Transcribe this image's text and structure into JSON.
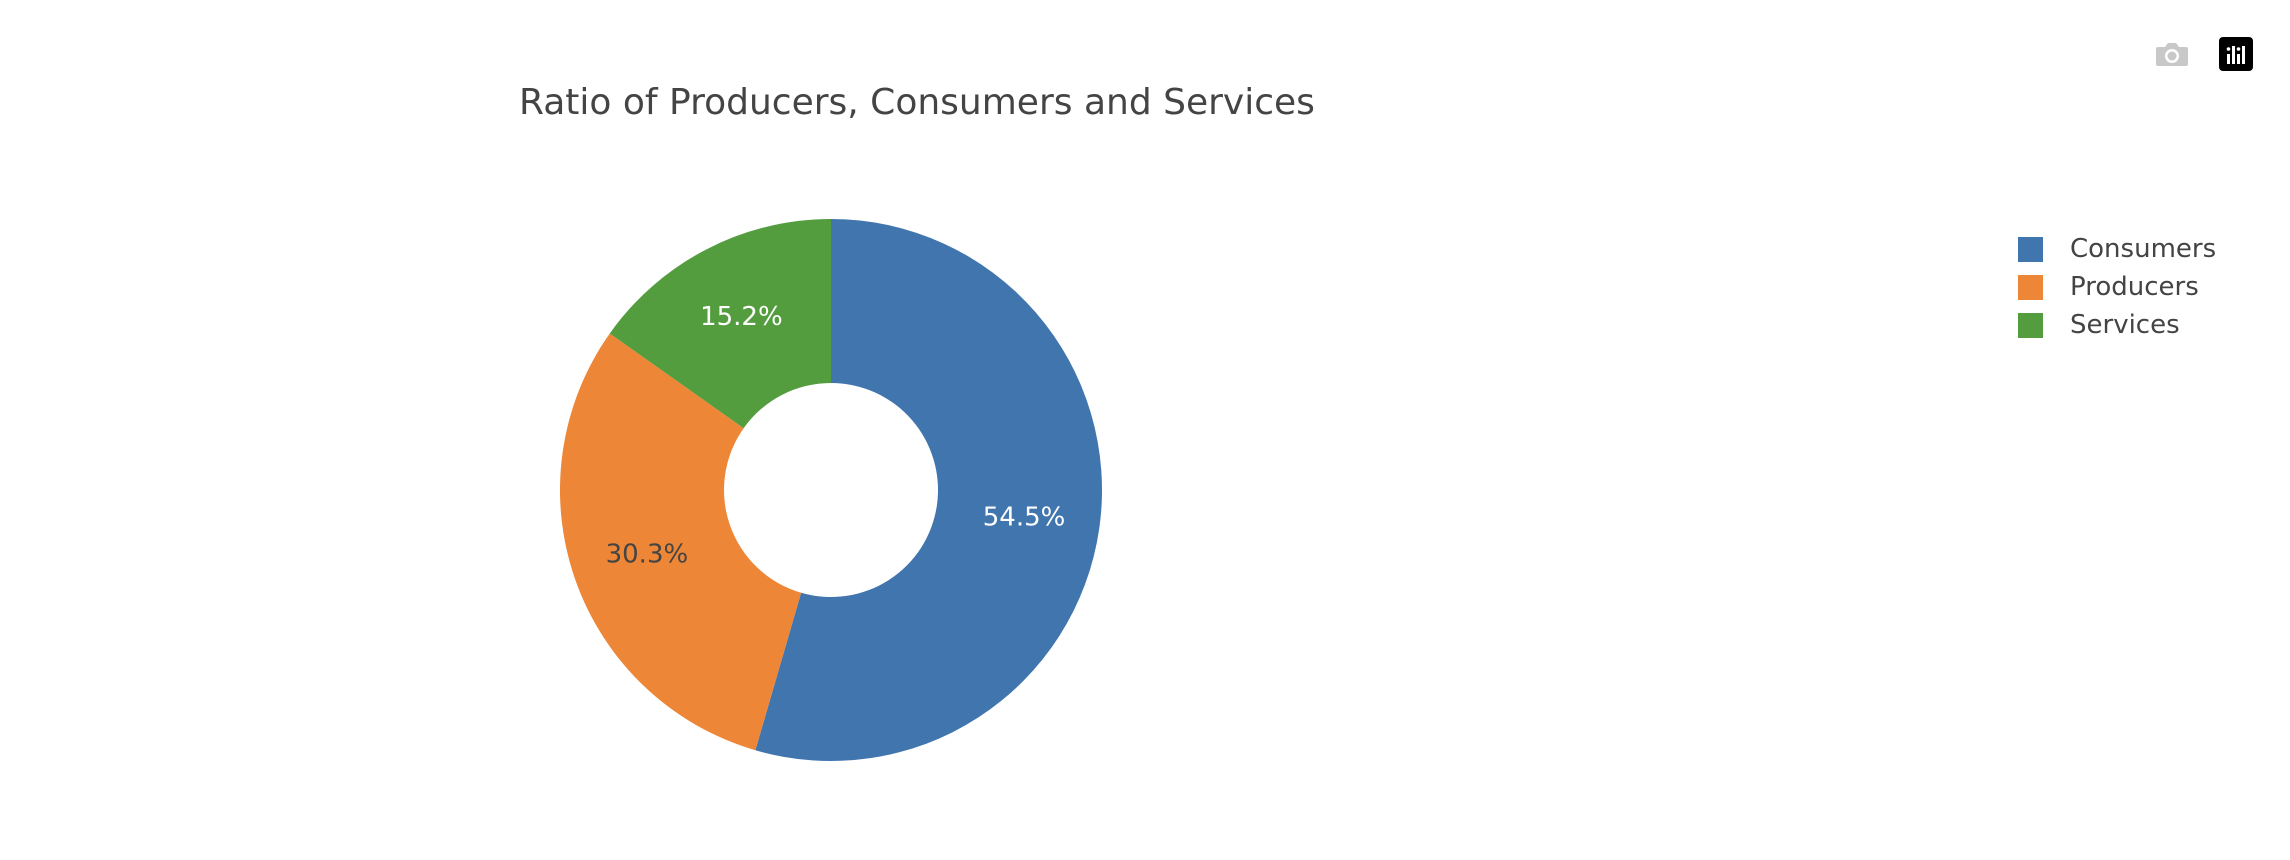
{
  "chart_data": {
    "type": "pie",
    "title": "Ratio of Producers, Consumers and Services",
    "hole": true,
    "labels": [
      "Consumers",
      "Producers",
      "Services"
    ],
    "values": [
      54.5,
      30.3,
      15.2
    ],
    "text_labels": [
      "54.5%",
      "30.3%",
      "15.2%"
    ],
    "colors": [
      "#4075ae",
      "#ed8636",
      "#539d3f"
    ],
    "label_colors": [
      "#ffffff",
      "#444444",
      "#ffffff"
    ],
    "legend_position": "top-right"
  },
  "modebar": {
    "icons": [
      "camera-icon",
      "plotly-logo-icon"
    ]
  }
}
